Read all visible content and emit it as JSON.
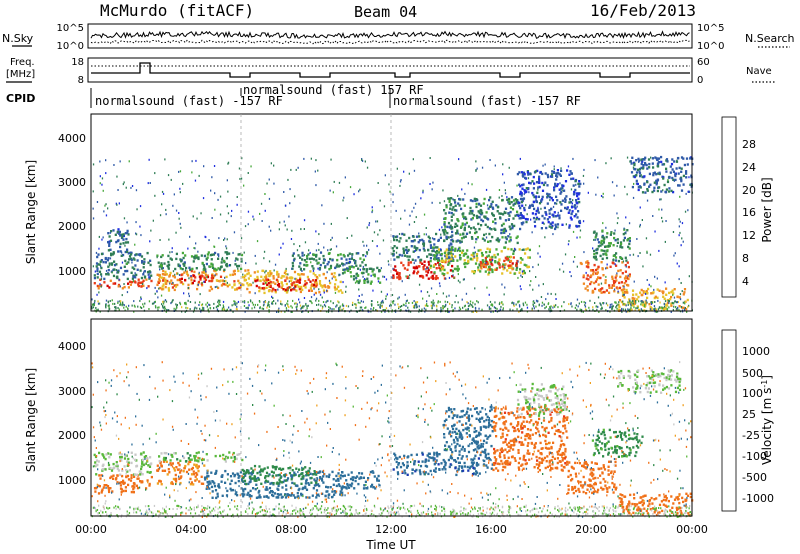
{
  "header": {
    "station": "McMurdo (fitACF)",
    "beam": "Beam 04",
    "date": "16/Feb/2013"
  },
  "noise_panel": {
    "left_label": "N.Sky",
    "right_label": "N.Search",
    "left_ticks": [
      "10^5",
      "10^0"
    ],
    "right_ticks": [
      "10^5",
      "10^0"
    ]
  },
  "freq_panel": {
    "left_label_1": "Freq.",
    "left_label_2": "[MHz]",
    "right_label": "Nave",
    "left_ticks": [
      "18",
      "8"
    ],
    "right_ticks": [
      "60",
      "0"
    ]
  },
  "cpid_panel": {
    "label": "CPID",
    "segments": [
      {
        "start": 0,
        "end": 6,
        "text": "normalsound (fast) -157 RF"
      },
      {
        "start": 6,
        "end": 12,
        "text": "normalsound (fast) 157 RF"
      },
      {
        "start": 12,
        "end": 24,
        "text": "normalsound (fast) -157 RF"
      }
    ]
  },
  "axes": {
    "ylabel": "Slant Range [km]",
    "y_ticks": [
      "1000",
      "2000",
      "3000",
      "4000"
    ],
    "x_ticks": [
      "00:00",
      "04:00",
      "08:00",
      "12:00",
      "16:00",
      "20:00",
      "00:00"
    ],
    "xlabel": "Time UT"
  },
  "power_colorbar": {
    "label": "Power [dB]",
    "ticks": [
      "4",
      "8",
      "12",
      "16",
      "20",
      "24",
      "28"
    ],
    "colors": [
      "#1f2fe0",
      "#2f5aa8",
      "#2f7d55",
      "#47a83a",
      "#e6c229",
      "#f08a24",
      "#e83a18",
      "#d40000"
    ]
  },
  "velocity_colorbar": {
    "label": "Velocity [m s",
    "label_sup": "-1",
    "label_end": "]",
    "ticks": [
      "1000",
      "500",
      "100",
      "25",
      "-25",
      "-100",
      "-500",
      "-1000"
    ],
    "colors": [
      "#1a3ab0",
      "#2c6e9a",
      "#2e8a4a",
      "#58b83a",
      "#c8c8c8",
      "#f0a020",
      "#f07018",
      "#e83a18",
      "#e00000"
    ]
  },
  "chart_data": [
    {
      "type": "heatmap",
      "name": "Power",
      "x_range_hours": [
        0,
        24
      ],
      "y_range_km": [
        180,
        4500
      ],
      "color_range_db": [
        0,
        30
      ],
      "blobs": [
        {
          "t0": 0.1,
          "t1": 2.4,
          "r0": 700,
          "r1": 900,
          "v": 24
        },
        {
          "t0": 0.1,
          "t1": 2.4,
          "r0": 900,
          "r1": 1500,
          "v": 8
        },
        {
          "t0": 0.5,
          "t1": 1.5,
          "r0": 1500,
          "r1": 2000,
          "v": 6
        },
        {
          "t0": 2.6,
          "t1": 6.0,
          "r0": 650,
          "r1": 1100,
          "v": 20
        },
        {
          "t0": 2.6,
          "t1": 6.0,
          "r0": 1100,
          "r1": 1500,
          "v": 10
        },
        {
          "t0": 3.5,
          "t1": 5.2,
          "r0": 800,
          "r1": 1000,
          "v": 26
        },
        {
          "t0": 6.0,
          "t1": 10.0,
          "r0": 600,
          "r1": 1100,
          "v": 18
        },
        {
          "t0": 6.5,
          "t1": 9.0,
          "r0": 650,
          "r1": 900,
          "v": 26
        },
        {
          "t0": 8.0,
          "t1": 11.0,
          "r0": 1100,
          "r1": 1500,
          "v": 9
        },
        {
          "t0": 10.0,
          "t1": 11.5,
          "r0": 800,
          "r1": 1200,
          "v": 12
        },
        {
          "t0": 12.0,
          "t1": 14.5,
          "r0": 900,
          "r1": 1300,
          "v": 26
        },
        {
          "t0": 12.0,
          "t1": 14.5,
          "r0": 1300,
          "r1": 1900,
          "v": 8
        },
        {
          "t0": 13.5,
          "t1": 17.5,
          "r0": 1000,
          "r1": 1600,
          "v": 14
        },
        {
          "t0": 14.0,
          "t1": 17.0,
          "r0": 1700,
          "r1": 2700,
          "v": 9
        },
        {
          "t0": 15.5,
          "t1": 17.0,
          "r0": 1100,
          "r1": 1400,
          "v": 24
        },
        {
          "t0": 17.0,
          "t1": 19.5,
          "r0": 2000,
          "r1": 3300,
          "v": 5
        },
        {
          "t0": 19.5,
          "t1": 21.5,
          "r0": 600,
          "r1": 1300,
          "v": 22
        },
        {
          "t0": 20.0,
          "t1": 21.5,
          "r0": 1300,
          "r1": 2000,
          "v": 10
        },
        {
          "t0": 21.0,
          "t1": 23.8,
          "r0": 200,
          "r1": 700,
          "v": 18
        },
        {
          "t0": 21.5,
          "t1": 24.0,
          "r0": 2800,
          "r1": 3600,
          "v": 6
        }
      ]
    },
    {
      "type": "heatmap",
      "name": "Velocity",
      "x_range_hours": [
        0,
        24
      ],
      "y_range_km": [
        180,
        4500
      ],
      "color_range_ms": [
        -1000,
        1000
      ],
      "blobs": [
        {
          "t0": 0.1,
          "t1": 2.4,
          "r0": 700,
          "r1": 1100,
          "v": -150
        },
        {
          "t0": 0.1,
          "t1": 2.4,
          "r0": 1100,
          "r1": 1600,
          "v": 0
        },
        {
          "t0": 2.6,
          "t1": 4.5,
          "r0": 900,
          "r1": 1400,
          "v": -120
        },
        {
          "t0": 2.6,
          "t1": 6.0,
          "r0": 1400,
          "r1": 1600,
          "v": 10
        },
        {
          "t0": 4.5,
          "t1": 10.0,
          "r0": 600,
          "r1": 1200,
          "v": 300
        },
        {
          "t0": 6.0,
          "t1": 9.0,
          "r0": 900,
          "r1": 1300,
          "v": 60
        },
        {
          "t0": 10.0,
          "t1": 11.5,
          "r0": 800,
          "r1": 1200,
          "v": 150
        },
        {
          "t0": 12.0,
          "t1": 16.0,
          "r0": 1100,
          "r1": 1600,
          "v": 400
        },
        {
          "t0": 14.0,
          "t1": 16.0,
          "r0": 1600,
          "r1": 2600,
          "v": 200
        },
        {
          "t0": 16.0,
          "t1": 19.0,
          "r0": 1200,
          "r1": 2600,
          "v": -400
        },
        {
          "t0": 19.0,
          "t1": 21.0,
          "r0": 700,
          "r1": 1400,
          "v": -150
        },
        {
          "t0": 20.0,
          "t1": 22.0,
          "r0": 1500,
          "r1": 2100,
          "v": 40
        },
        {
          "t0": 21.0,
          "t1": 24.0,
          "r0": 200,
          "r1": 700,
          "v": -150
        },
        {
          "t0": 17.0,
          "t1": 19.0,
          "r0": 2400,
          "r1": 3100,
          "v": 0
        },
        {
          "t0": 21.0,
          "t1": 23.5,
          "r0": 2900,
          "r1": 3400,
          "v": 0
        }
      ]
    }
  ]
}
